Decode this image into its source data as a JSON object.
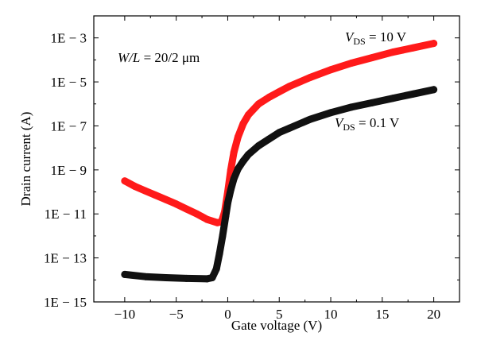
{
  "chart_data": {
    "type": "scatter",
    "title": "",
    "xlabel": "Gate voltage (V)",
    "ylabel": "Drain current (A)",
    "x_ticks": [
      "−10",
      "−5",
      "0",
      "5",
      "10",
      "15",
      "20"
    ],
    "x_tick_values": [
      -10,
      -5,
      0,
      5,
      10,
      15,
      20
    ],
    "y_ticks": [
      "1E − 3",
      "1E − 5",
      "1E − 7",
      "1E − 9",
      "1E − 11",
      "1E − 13",
      "1E − 15"
    ],
    "y_tick_exponents": [
      -3,
      -5,
      -7,
      -9,
      -11,
      -13,
      -15
    ],
    "xlim": [
      -13,
      22.5
    ],
    "ylim_log10": [
      -15,
      -2
    ],
    "y_scale": "log",
    "grid": false,
    "annotations": {
      "wl_italic": "W/L",
      "wl_value": " = 20/2 μm",
      "vds_high_v": "V",
      "vds_high_sub": "DS",
      "vds_high_value": " = 10 V",
      "vds_low_v": "V",
      "vds_low_sub": "DS",
      "vds_low_value": " = 0.1 V"
    },
    "series": [
      {
        "color": "#ff1a1a",
        "points": [
          [
            -10,
            -9.5
          ],
          [
            -9,
            -9.75
          ],
          [
            -8,
            -9.95
          ],
          [
            -7,
            -10.15
          ],
          [
            -6,
            -10.35
          ],
          [
            -5,
            -10.55
          ],
          [
            -4,
            -10.78
          ],
          [
            -3,
            -11.0
          ],
          [
            -2,
            -11.25
          ],
          [
            -1,
            -11.4
          ],
          [
            -0.6,
            -11.35
          ],
          [
            -0.3,
            -10.9
          ],
          [
            0,
            -10.0
          ],
          [
            0.3,
            -9.0
          ],
          [
            0.6,
            -8.2
          ],
          [
            1,
            -7.5
          ],
          [
            1.5,
            -6.9
          ],
          [
            2,
            -6.5
          ],
          [
            3,
            -6.0
          ],
          [
            4,
            -5.7
          ],
          [
            5,
            -5.45
          ],
          [
            6,
            -5.2
          ],
          [
            8,
            -4.8
          ],
          [
            10,
            -4.45
          ],
          [
            12,
            -4.15
          ],
          [
            14,
            -3.9
          ],
          [
            16,
            -3.65
          ],
          [
            18,
            -3.45
          ],
          [
            20,
            -3.25
          ]
        ]
      },
      {
        "color": "#111111",
        "points": [
          [
            -10,
            -13.75
          ],
          [
            -8,
            -13.85
          ],
          [
            -6,
            -13.9
          ],
          [
            -4,
            -13.93
          ],
          [
            -2,
            -13.95
          ],
          [
            -1.5,
            -13.9
          ],
          [
            -1.1,
            -13.5
          ],
          [
            -0.8,
            -12.8
          ],
          [
            -0.5,
            -12.0
          ],
          [
            -0.2,
            -11.1
          ],
          [
            0,
            -10.5
          ],
          [
            0.3,
            -9.9
          ],
          [
            0.6,
            -9.4
          ],
          [
            1,
            -8.95
          ],
          [
            1.5,
            -8.6
          ],
          [
            2,
            -8.3
          ],
          [
            3,
            -7.9
          ],
          [
            4,
            -7.6
          ],
          [
            5,
            -7.3
          ],
          [
            6,
            -7.1
          ],
          [
            8,
            -6.7
          ],
          [
            10,
            -6.4
          ],
          [
            12,
            -6.15
          ],
          [
            14,
            -5.95
          ],
          [
            16,
            -5.75
          ],
          [
            18,
            -5.55
          ],
          [
            20,
            -5.35
          ]
        ]
      }
    ]
  }
}
